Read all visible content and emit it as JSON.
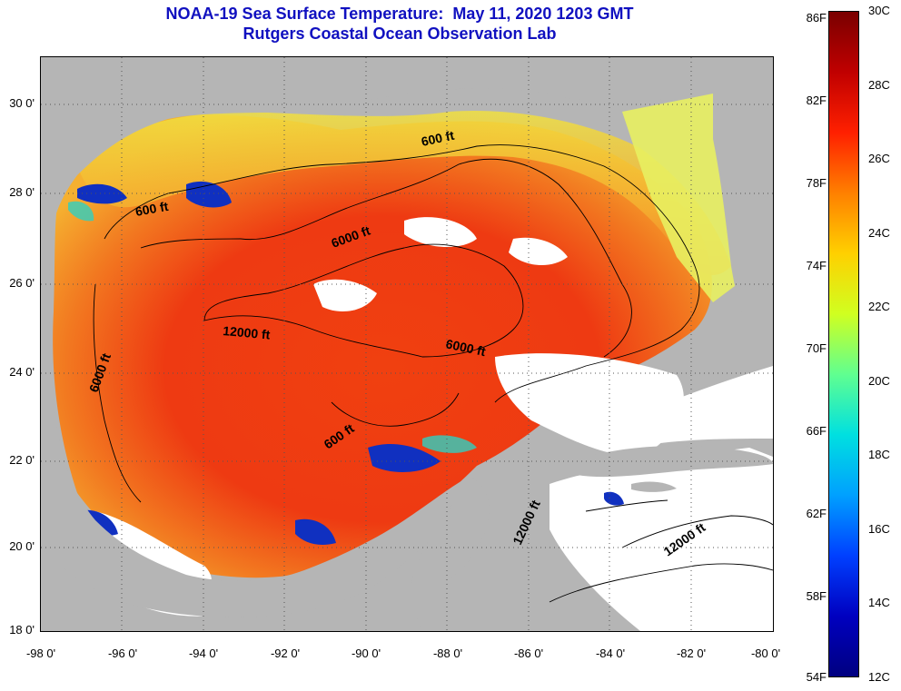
{
  "title": {
    "line1": "NOAA-19 Sea Surface Temperature:  May 11, 2020 1203 GMT",
    "line2": "Rutgers Coastal Ocean Observation Lab"
  },
  "map": {
    "lat_labels": [
      "30 0'",
      "28 0'",
      "26 0'",
      "24 0'",
      "22 0'",
      "20 0'",
      "18 0'"
    ],
    "lon_labels": [
      "-98 0'",
      "-96 0'",
      "-94 0'",
      "-92 0'",
      "-90 0'",
      "-88 0'",
      "-86 0'",
      "-84 0'",
      "-82 0'",
      "-80 0'"
    ],
    "contour_labels": [
      "600 ft",
      "600 ft",
      "6000 ft",
      "12000 ft",
      "6000 ft",
      "6000 ft",
      "600 ft",
      "12000 ft",
      "12000 ft"
    ],
    "colors": {
      "land": "#b5b5b5",
      "cloud": "#ffffff",
      "warm": "#e82010",
      "mid": "#f06010",
      "cool": "#f0c020",
      "cold": "#1030c0"
    }
  },
  "colorbar": {
    "f_labels": [
      "86F",
      "82F",
      "78F",
      "74F",
      "70F",
      "66F",
      "62F",
      "58F",
      "54F"
    ],
    "c_labels": [
      "30C",
      "28C",
      "26C",
      "24C",
      "22C",
      "20C",
      "18C",
      "16C",
      "14C",
      "12C"
    ],
    "stops": [
      "#7a0000",
      "#c00000",
      "#ff2000",
      "#ff8000",
      "#ffd000",
      "#d0ff20",
      "#60ff90",
      "#00e0e0",
      "#00a0ff",
      "#0040ff",
      "#0000c0",
      "#000080"
    ]
  }
}
